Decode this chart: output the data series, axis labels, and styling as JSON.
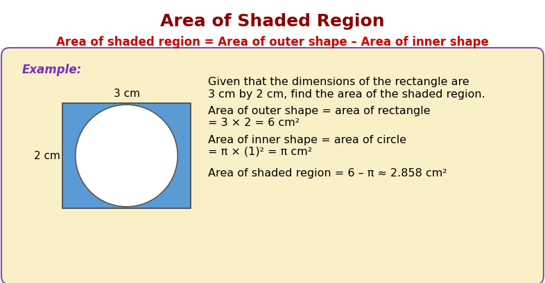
{
  "title": "Area of Shaded Region",
  "title_color": "#8B0000",
  "title_fontsize": 18,
  "subtitle": "Area of shaded region = Area of outer shape – Area of inner shape",
  "subtitle_color": "#CC0000",
  "subtitle_fontsize": 12,
  "example_label": "Example:",
  "example_color": "#7B2FBE",
  "bg_color": "#FFFFFF",
  "box_color": "#FAF0C8",
  "box_border_color": "#7B52AB",
  "rect_fill": "#5B9BD5",
  "rect_border": "#444444",
  "circle_fill": "#FFFFFF",
  "circle_border": "#555555",
  "dim_label_3cm": "3 cm",
  "dim_label_2cm": "2 cm",
  "text_line1a": "Given that the dimensions of the rectangle are",
  "text_line1b": "3 cm by 2 cm, find the area of the shaded region.",
  "text_line2a": "Area of outer shape = area of rectangle",
  "text_line2b": "= 3 × 2 = 6 cm²",
  "text_line3a": "Area of inner shape = area of circle",
  "text_line3b": "= π × (1)² = π cm²",
  "text_line4": "Area of shaded region = 6 – π ≈ 2.858 cm²",
  "text_fontsize": 11.5,
  "outer_border_color": "#5B3FA0"
}
